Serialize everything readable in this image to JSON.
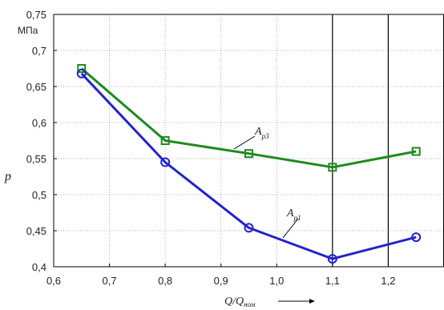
{
  "chart_data": {
    "type": "line",
    "title": "",
    "ylabel": "p",
    "y_unit": "МПа",
    "xlabel": "Q/Q",
    "xlabel_sub": "ном",
    "xlim": [
      0.6,
      1.3
    ],
    "ylim": [
      0.4,
      0.75
    ],
    "x_ticks": [
      0.6,
      0.7,
      0.8,
      0.9,
      1.0,
      1.1,
      1.2
    ],
    "x_tick_labels": [
      "0,6",
      "0,7",
      "0,8",
      "0,9",
      "1,0",
      "1,1",
      "1,2"
    ],
    "y_ticks": [
      0.4,
      0.45,
      0.5,
      0.55,
      0.6,
      0.65,
      0.7,
      0.75
    ],
    "y_tick_labels": [
      "0,4",
      "0,45",
      "0,5",
      "0,55",
      "0,6",
      "0,65",
      "0,7",
      "0,75"
    ],
    "grid": true,
    "vertical_lines_x": [
      1.1,
      1.2
    ],
    "series": [
      {
        "name": "A",
        "name_sub": "p3",
        "color": "#1e8a1e",
        "marker": "square",
        "x": [
          0.65,
          0.8,
          0.95,
          1.1,
          1.25
        ],
        "values": [
          0.675,
          0.575,
          0.557,
          0.538,
          0.56
        ]
      },
      {
        "name": "A",
        "name_sub": "p1",
        "color": "#2222cc",
        "marker": "circle",
        "x": [
          0.65,
          0.8,
          0.95,
          1.1,
          1.25
        ],
        "values": [
          0.668,
          0.545,
          0.454,
          0.411,
          0.441
        ]
      }
    ]
  }
}
